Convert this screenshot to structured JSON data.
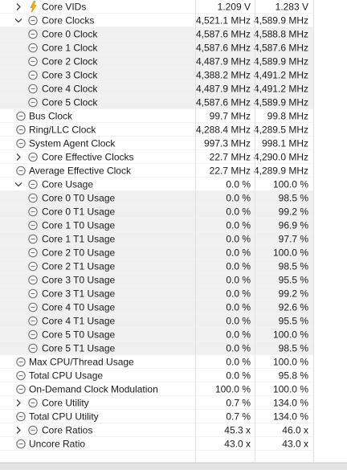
{
  "sensors": {
    "rows": [
      {
        "label": "Core VIDs",
        "current": "1.209 V",
        "maximum": "1.283 V"
      },
      {
        "label": "Core Clocks",
        "current": "4,521.1 MHz",
        "maximum": "4,589.9 MHz"
      },
      {
        "label": "Core 0 Clock",
        "current": "4,587.6 MHz",
        "maximum": "4,588.8 MHz"
      },
      {
        "label": "Core 1 Clock",
        "current": "4,587.6 MHz",
        "maximum": "4,587.6 MHz"
      },
      {
        "label": "Core 2 Clock",
        "current": "4,487.9 MHz",
        "maximum": "4,589.9 MHz"
      },
      {
        "label": "Core 3 Clock",
        "current": "4,388.2 MHz",
        "maximum": "4,491.2 MHz"
      },
      {
        "label": "Core 4 Clock",
        "current": "4,487.9 MHz",
        "maximum": "4,491.2 MHz"
      },
      {
        "label": "Core 5 Clock",
        "current": "4,587.6 MHz",
        "maximum": "4,589.9 MHz"
      },
      {
        "label": "Bus Clock",
        "current": "99.7 MHz",
        "maximum": "99.8 MHz"
      },
      {
        "label": "Ring/LLC Clock",
        "current": "4,288.4 MHz",
        "maximum": "4,289.5 MHz"
      },
      {
        "label": "System Agent Clock",
        "current": "997.3 MHz",
        "maximum": "998.1 MHz"
      },
      {
        "label": "Core Effective Clocks",
        "current": "22.7 MHz",
        "maximum": "4,290.0 MHz"
      },
      {
        "label": "Average Effective Clock",
        "current": "22.7 MHz",
        "maximum": "4,289.9 MHz"
      },
      {
        "label": "Core Usage",
        "current": "0.0 %",
        "maximum": "100.0 %"
      },
      {
        "label": "Core 0 T0 Usage",
        "current": "0.0 %",
        "maximum": "98.5 %"
      },
      {
        "label": "Core 0 T1 Usage",
        "current": "0.0 %",
        "maximum": "99.2 %"
      },
      {
        "label": "Core 1 T0 Usage",
        "current": "0.0 %",
        "maximum": "96.9 %"
      },
      {
        "label": "Core 1 T1 Usage",
        "current": "0.0 %",
        "maximum": "97.7 %"
      },
      {
        "label": "Core 2 T0 Usage",
        "current": "0.0 %",
        "maximum": "100.0 %"
      },
      {
        "label": "Core 2 T1 Usage",
        "current": "0.0 %",
        "maximum": "98.5 %"
      },
      {
        "label": "Core 3 T0 Usage",
        "current": "0.0 %",
        "maximum": "95.5 %"
      },
      {
        "label": "Core 3 T1 Usage",
        "current": "0.0 %",
        "maximum": "99.2 %"
      },
      {
        "label": "Core 4 T0 Usage",
        "current": "0.0 %",
        "maximum": "92.6 %"
      },
      {
        "label": "Core 4 T1 Usage",
        "current": "0.0 %",
        "maximum": "95.5 %"
      },
      {
        "label": "Core 5 T0 Usage",
        "current": "0.0 %",
        "maximum": "100.0 %"
      },
      {
        "label": "Core 5 T1 Usage",
        "current": "0.0 %",
        "maximum": "98.5 %"
      },
      {
        "label": "Max CPU/Thread Usage",
        "current": "0.0 %",
        "maximum": "100.0 %"
      },
      {
        "label": "Total CPU Usage",
        "current": "0.0 %",
        "maximum": "95.8 %"
      },
      {
        "label": "On-Demand Clock Modulation",
        "current": "100.0 %",
        "maximum": "100.0 %"
      },
      {
        "label": "Core Utility",
        "current": "0.7 %",
        "maximum": "134.0 %"
      },
      {
        "label": "Total CPU Utility",
        "current": "0.7 %",
        "maximum": "134.0 %"
      },
      {
        "label": "Core Ratios",
        "current": "45.3 x",
        "maximum": "46.0 x"
      },
      {
        "label": "Uncore Ratio",
        "current": "43.0 x",
        "maximum": "43.0 x"
      }
    ]
  }
}
